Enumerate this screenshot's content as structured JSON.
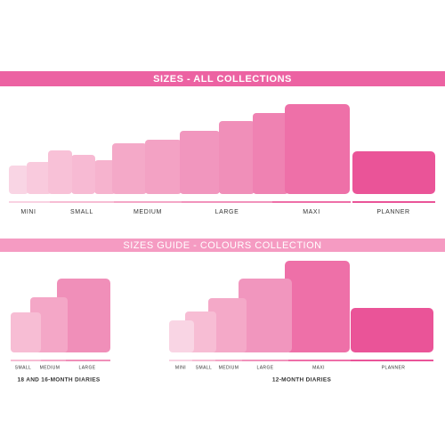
{
  "banner_top": "SIZES - ALL COLLECTIONS",
  "all_collections": {
    "labels": [
      "MINI",
      "SMALL",
      "MEDIUM",
      "LARGE",
      "MAXI",
      "PLANNER"
    ]
  },
  "banner_guide": "SIZES GUIDE - COLOURS COLLECTION",
  "diaries_18_16": {
    "labels": [
      "SMALL",
      "MEDIUM",
      "LARGE"
    ],
    "caption": "18 AND 16-MONTH DIARIES"
  },
  "diaries_12": {
    "labels": [
      "MINI",
      "SMALL",
      "MEDIUM",
      "LARGE",
      "MAXI",
      "PLANNER"
    ],
    "caption": "12-MONTH DIARIES"
  }
}
